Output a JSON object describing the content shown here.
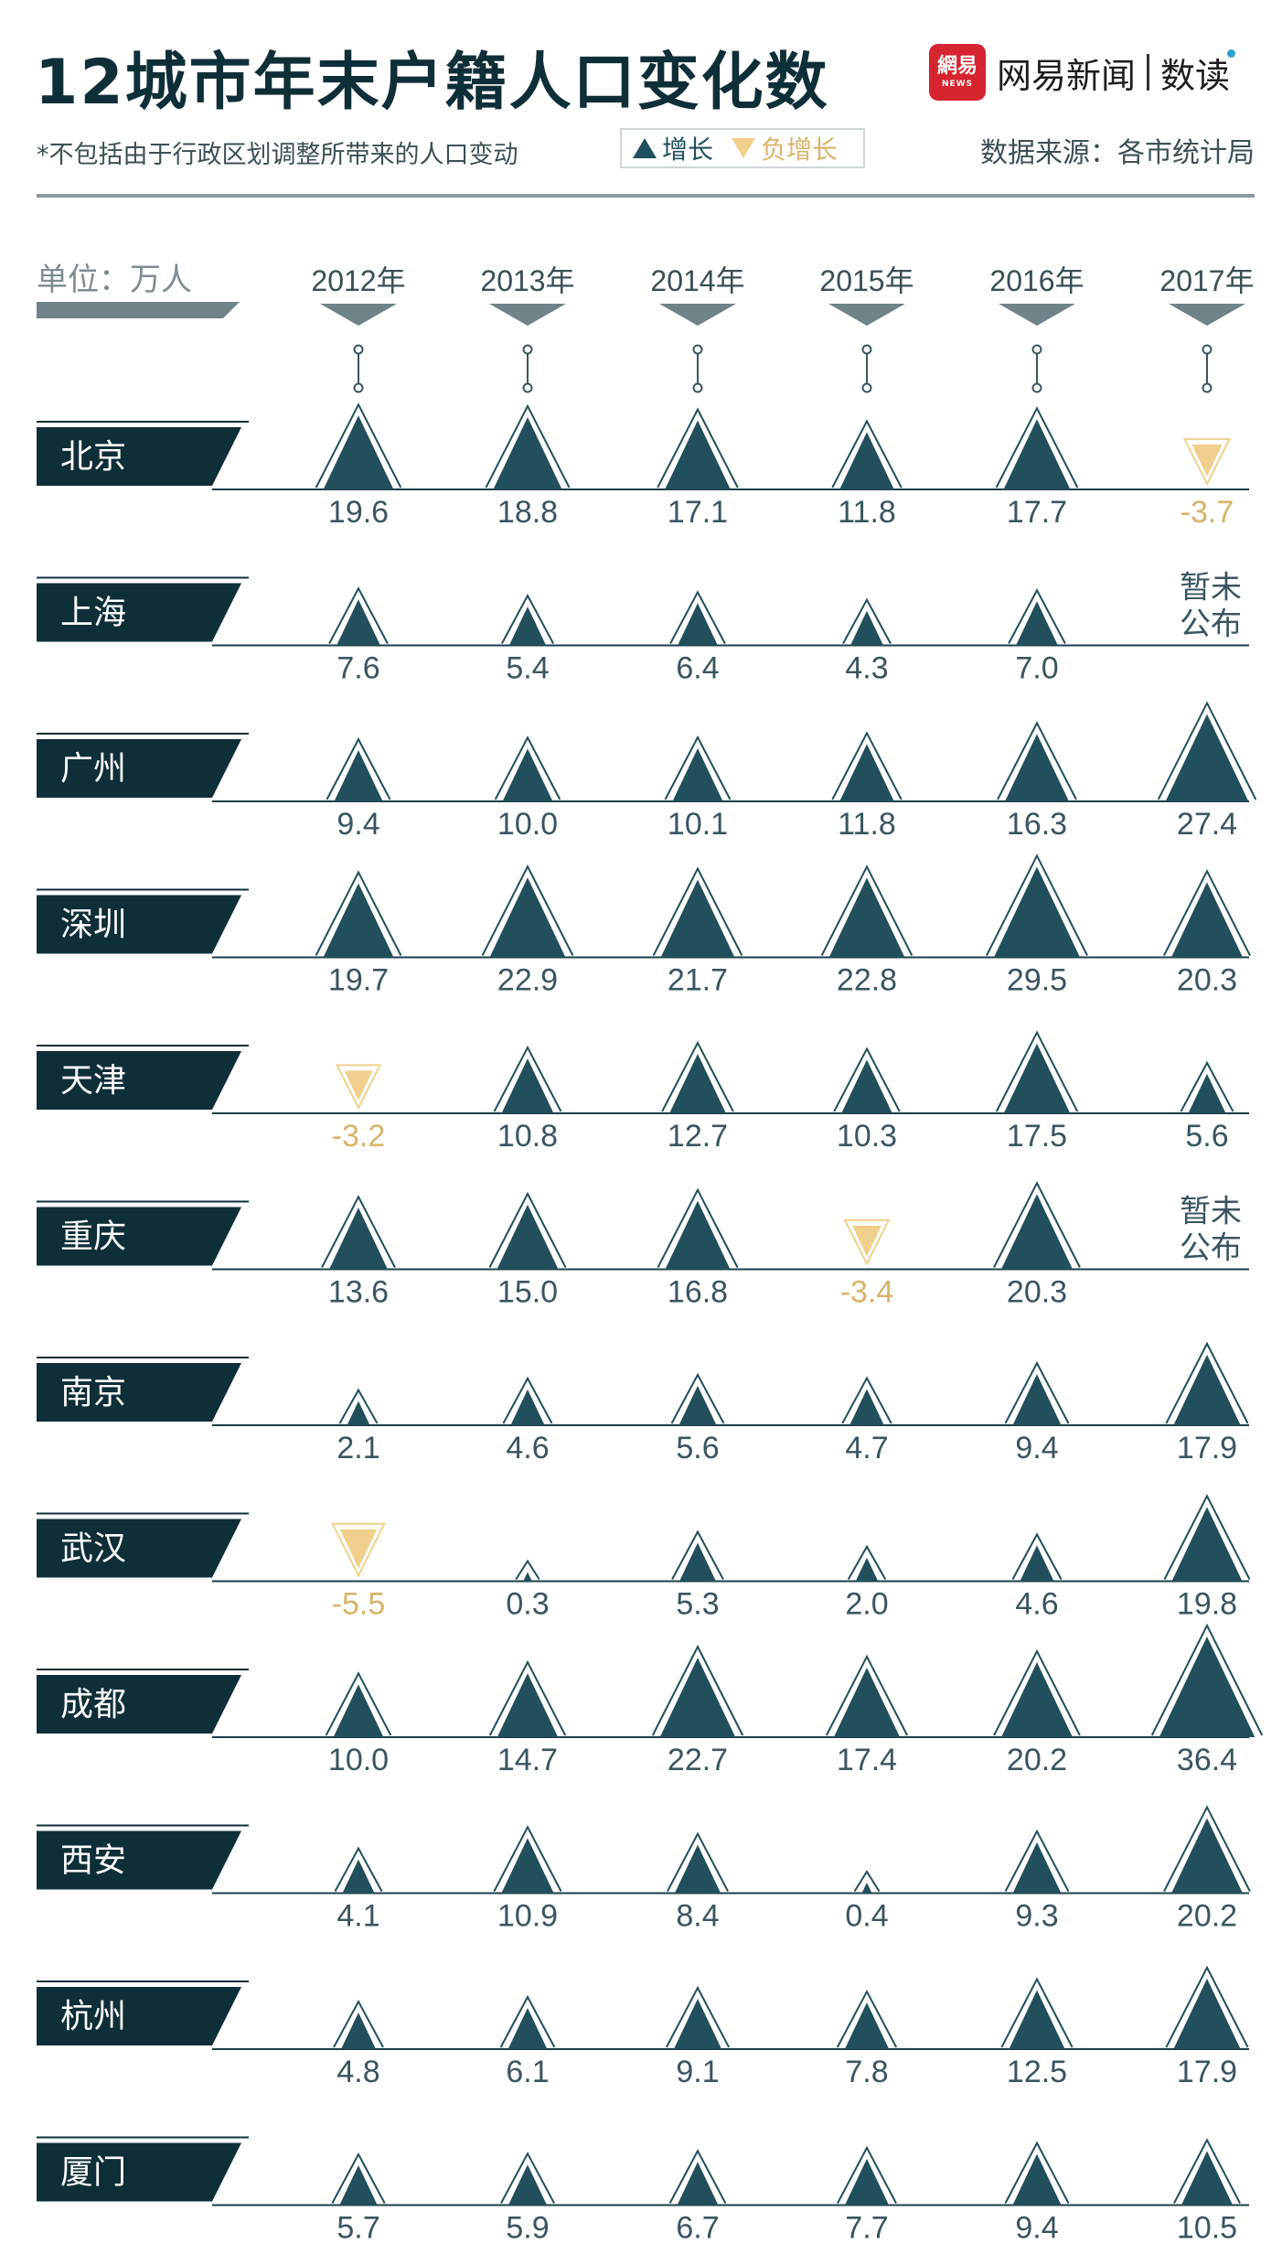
{
  "header": {
    "title": "12城市年末户籍人口变化数",
    "subtitle": "*不包括由于行政区划调整所带来的人口变动",
    "legend_positive": "增长",
    "legend_negative": "负增长",
    "brand_name": "网易新闻",
    "brand_column": "数读",
    "brand_logo_text": "網易",
    "brand_logo_sub": "NEWS",
    "source": "数据来源：各市统计局"
  },
  "colors": {
    "positive": "#214f5b",
    "negative": "#f1d08e",
    "label_band": "#0f2f38",
    "axis": "#1e3d47",
    "brand_red": "#d6242e"
  },
  "chart_data": {
    "type": "scatter",
    "unit_label": "单位：万人",
    "years": [
      "2012年",
      "2013年",
      "2014年",
      "2015年",
      "2016年",
      "2017年"
    ],
    "not_published_text": "暂未\n公布",
    "cities": [
      {
        "name": "北京",
        "values": [
          19.6,
          18.8,
          17.1,
          11.8,
          17.7,
          -3.7
        ]
      },
      {
        "name": "上海",
        "values": [
          7.6,
          5.4,
          6.4,
          4.3,
          7.0,
          null
        ]
      },
      {
        "name": "广州",
        "values": [
          9.4,
          10.0,
          10.1,
          11.8,
          16.3,
          27.4
        ]
      },
      {
        "name": "深圳",
        "values": [
          19.7,
          22.9,
          21.7,
          22.8,
          29.5,
          20.3
        ]
      },
      {
        "name": "天津",
        "values": [
          -3.2,
          10.8,
          12.7,
          10.3,
          17.5,
          5.6
        ]
      },
      {
        "name": "重庆",
        "values": [
          13.6,
          15.0,
          16.8,
          -3.4,
          20.3,
          null
        ]
      },
      {
        "name": "南京",
        "values": [
          2.1,
          4.6,
          5.6,
          4.7,
          9.4,
          17.9
        ]
      },
      {
        "name": "武汉",
        "values": [
          -5.5,
          0.3,
          5.3,
          2.0,
          4.6,
          19.8
        ]
      },
      {
        "name": "成都",
        "values": [
          10.0,
          14.7,
          22.7,
          17.4,
          20.2,
          36.4
        ]
      },
      {
        "name": "西安",
        "values": [
          4.1,
          10.9,
          8.4,
          0.4,
          9.3,
          20.2
        ]
      },
      {
        "name": "杭州",
        "values": [
          4.8,
          6.1,
          9.1,
          7.8,
          12.5,
          17.9
        ]
      },
      {
        "name": "厦门",
        "values": [
          5.7,
          5.9,
          6.7,
          7.7,
          9.4,
          10.5
        ]
      }
    ]
  }
}
